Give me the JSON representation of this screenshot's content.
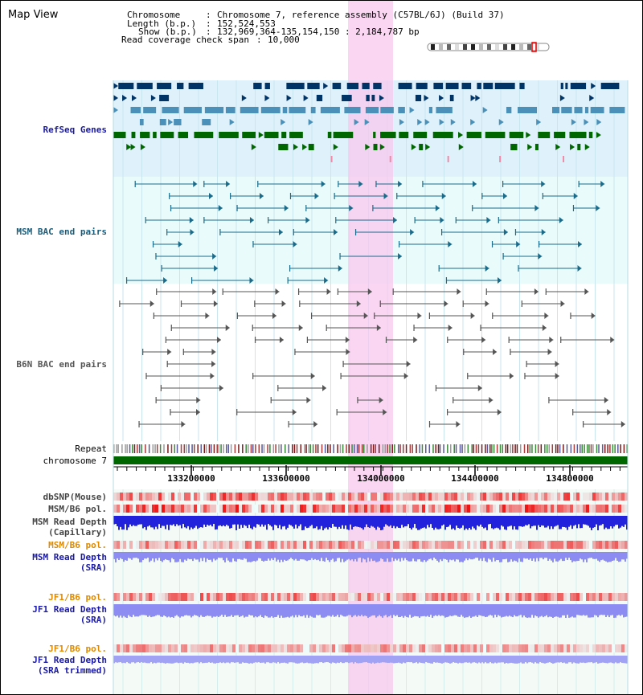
{
  "header": {
    "title": "Map View",
    "chromosome_key": "Chromosome",
    "chromosome_value": "Chromosome 7, reference assembly (C57BL/6J) (Build 37)",
    "length_key": "Length (b.p.)",
    "length_value": "152,524,553",
    "show_key": "Show (b.p.)",
    "show_value": "132,969,364-135,154,150 : 2,184,787 bp",
    "coverage_key": "Read coverage check span",
    "coverage_value": "10,000"
  },
  "tracks": {
    "refseq": {
      "label": "RefSeq Genes",
      "color": "#1a1aa6"
    },
    "msm_bac": {
      "label": "MSM BAC end pairs",
      "color": "#1a5c7a"
    },
    "b6n_bac": {
      "label": "B6N BAC end pairs",
      "color": "#555555"
    },
    "repeat": {
      "label": "Repeat"
    },
    "chromosome": {
      "label": "chromosome 7",
      "color": "#006600"
    }
  },
  "axis": {
    "ticks": [
      "133200000",
      "133600000",
      "134000000",
      "134400000",
      "134800000"
    ]
  },
  "lower_tracks": [
    {
      "label": "dbSNP(Mouse)",
      "color": "#444444"
    },
    {
      "label": "MSM/B6 pol.",
      "color": "#444444"
    },
    {
      "label": "MSM Read Depth",
      "sub": "(Capillary)",
      "color": "#444444"
    },
    {
      "label": "MSM/B6 pol.",
      "color": "#e08a00"
    },
    {
      "label": "MSM Read Depth",
      "sub": "(SRA)",
      "color": "#1a1aa6"
    },
    {
      "label": "JF1/B6 pol.",
      "color": "#e08a00"
    },
    {
      "label": "JF1 Read Depth",
      "sub": "(SRA)",
      "color": "#1a1aa6"
    },
    {
      "label": "JF1/B6 pol.",
      "color": "#e08a00"
    },
    {
      "label": "JF1 Read Depth",
      "sub": "(SRA trimmed)",
      "color": "#1a1aa6"
    }
  ],
  "colors": {
    "highlight": "#f8c8ee",
    "gene_navy": "#003366",
    "gene_teal": "#4a90b8",
    "gene_green": "#006600",
    "depth_blue": "#2222dd",
    "depth_light": "#8c8cf2"
  }
}
